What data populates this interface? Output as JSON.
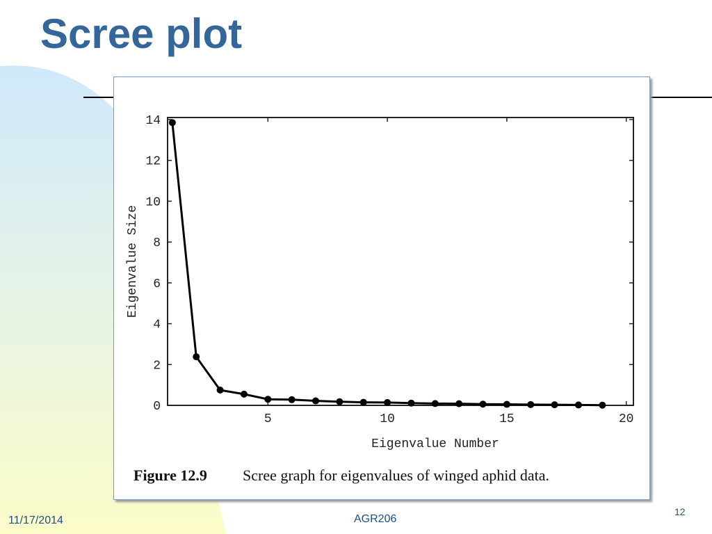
{
  "slide": {
    "title": "Scree plot",
    "date": "11/17/2014",
    "course": "AGR206",
    "page_number": "12"
  },
  "chart_data": {
    "type": "line",
    "x": [
      1,
      2,
      3,
      4,
      5,
      6,
      7,
      8,
      9,
      10,
      11,
      12,
      13,
      14,
      15,
      16,
      17,
      18,
      19
    ],
    "values": [
      13.85,
      2.38,
      0.75,
      0.55,
      0.3,
      0.28,
      0.22,
      0.18,
      0.15,
      0.14,
      0.11,
      0.09,
      0.08,
      0.06,
      0.05,
      0.04,
      0.03,
      0.02,
      0.01
    ],
    "color": "#000000",
    "xlabel": "Eigenvalue Number",
    "ylabel": "Eigenvalue Size",
    "xlim": [
      0.8,
      20.3
    ],
    "xticks": [
      5,
      10,
      15,
      20
    ],
    "ylim": [
      0,
      14.1
    ],
    "yticks": [
      0,
      2,
      4,
      6,
      8,
      10,
      12,
      14
    ],
    "caption_label": "Figure 12.9",
    "caption": "Scree graph for eigenvalues of winged aphid data."
  }
}
